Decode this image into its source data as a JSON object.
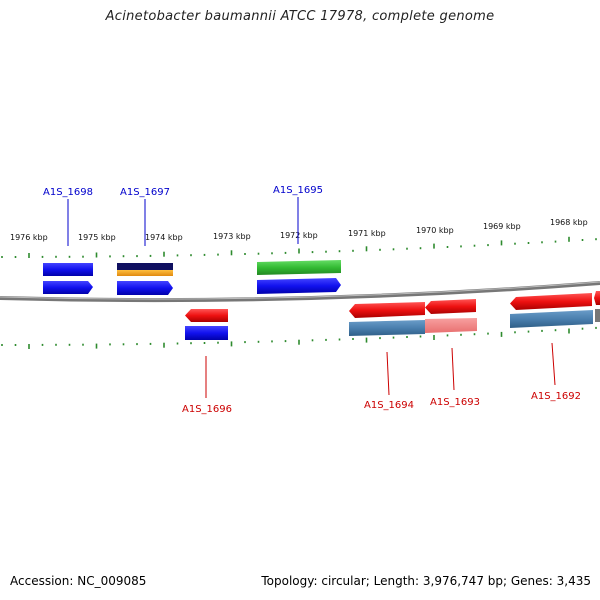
{
  "title": "Acinetobacter baumannii ATCC 17978, complete genome",
  "footer": {
    "accession": "Accession: NC_009085",
    "summary": "Topology: circular; Length: 3,976,747 bp; Genes: 3,435"
  },
  "scale_labels": [
    "1976 kbp",
    "1975 kbp",
    "1974 kbp",
    "1973 kbp",
    "1972 kbp",
    "1971 kbp",
    "1970 kbp",
    "1969 kbp",
    "1968 kbp"
  ],
  "gene_labels": {
    "plus": [
      "A1S_1698",
      "A1S_1697",
      "A1S_1695"
    ],
    "minus": [
      "A1S_1696",
      "A1S_1694",
      "A1S_1693",
      "A1S_1692"
    ]
  },
  "colors": {
    "plus_label": "#0000cc",
    "minus_label": "#cc0000",
    "tick": "#2e8b2e",
    "backbone": "#777777",
    "cds_forward": "#1a1aee",
    "cds_reverse": "#ee1111",
    "feature_green": "#33bb33",
    "feature_steel": "#4a7fae",
    "feature_pink": "#f08080",
    "feature_navy": "#101060",
    "feature_orange": "#f0a020"
  }
}
